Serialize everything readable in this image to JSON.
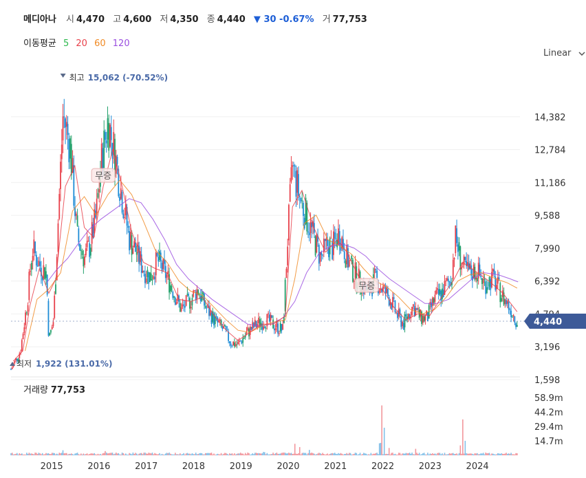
{
  "header": {
    "name": "메디아나",
    "open_label": "시",
    "open": "4,470",
    "high_label": "고",
    "high": "4,600",
    "low_label": "저",
    "low": "4,350",
    "close_label": "종",
    "close": "4,440",
    "change": "▼ 30 -0.67%",
    "volume_label": "거",
    "volume": "77,753"
  },
  "moving_average": {
    "label": "이동평균",
    "periods": [
      {
        "value": "5",
        "color": "#2db84d"
      },
      {
        "value": "20",
        "color": "#e8404a"
      },
      {
        "value": "60",
        "color": "#f08a24"
      },
      {
        "value": "120",
        "color": "#9b4fe0"
      }
    ]
  },
  "scale_selector": {
    "value": "Linear"
  },
  "volume_panel": {
    "label": "거래량",
    "value": "77,753"
  },
  "colors": {
    "up": "#e8404a",
    "down": "#1e8cd6",
    "current_badge": "#3d5a98",
    "neutral": "#22a06b"
  },
  "chart_data": {
    "type": "candlestick",
    "ylim": [
      1598,
      15980
    ],
    "y_ticks": [
      "14,382",
      "12,784",
      "11,186",
      "9,588",
      "7,990",
      "6,392",
      "4,794",
      "3,196",
      "1,598"
    ],
    "y_tick_values": [
      14382,
      12784,
      11186,
      9588,
      7990,
      6392,
      4794,
      3196,
      1598
    ],
    "x_ticks": [
      "2015",
      "2016",
      "2017",
      "2018",
      "2019",
      "2020",
      "2021",
      "2022",
      "2023",
      "2024"
    ],
    "x_tick_years": [
      2015,
      2016,
      2017,
      2018,
      2019,
      2020,
      2021,
      2022,
      2023,
      2024
    ],
    "x_range_years": [
      2014.2,
      2024.96
    ],
    "current_price": {
      "label": "4,440",
      "value": 4440
    },
    "high_marker": {
      "label": "최고",
      "value_text": "15,062 (-70.52%)",
      "value": 15062,
      "year": 2015.3
    },
    "low_marker": {
      "label": "최저",
      "value_text": "1,922 (131.01%)",
      "value": 1922,
      "year": 2014.2
    },
    "annotations": [
      {
        "text": "무증",
        "year": 2016.15,
        "value": 11500
      },
      {
        "text": "무증",
        "year": 2021.72,
        "value": 6150
      }
    ],
    "close_trend": [
      [
        2014.2,
        2100
      ],
      [
        2014.4,
        3000
      ],
      [
        2014.55,
        5500
      ],
      [
        2014.65,
        8000
      ],
      [
        2014.8,
        7200
      ],
      [
        2014.95,
        6800
      ],
      [
        2015.0,
        3500
      ],
      [
        2015.1,
        4500
      ],
      [
        2015.2,
        9500
      ],
      [
        2015.3,
        14500
      ],
      [
        2015.45,
        13000
      ],
      [
        2015.6,
        8500
      ],
      [
        2015.75,
        7500
      ],
      [
        2015.85,
        8000
      ],
      [
        2016.0,
        9500
      ],
      [
        2016.1,
        12000
      ],
      [
        2016.25,
        14200
      ],
      [
        2016.4,
        12500
      ],
      [
        2016.55,
        10500
      ],
      [
        2016.7,
        8500
      ],
      [
        2016.85,
        7800
      ],
      [
        2017.0,
        7000
      ],
      [
        2017.15,
        6600
      ],
      [
        2017.3,
        7400
      ],
      [
        2017.5,
        6600
      ],
      [
        2017.65,
        5800
      ],
      [
        2017.8,
        5000
      ],
      [
        2018.0,
        5500
      ],
      [
        2018.15,
        6000
      ],
      [
        2018.3,
        5200
      ],
      [
        2018.5,
        4500
      ],
      [
        2018.7,
        4000
      ],
      [
        2018.85,
        3400
      ],
      [
        2019.0,
        3300
      ],
      [
        2019.2,
        3900
      ],
      [
        2019.4,
        4300
      ],
      [
        2019.6,
        4500
      ],
      [
        2019.8,
        4200
      ],
      [
        2019.95,
        4000
      ],
      [
        2020.05,
        8500
      ],
      [
        2020.15,
        12000
      ],
      [
        2020.3,
        10500
      ],
      [
        2020.45,
        9500
      ],
      [
        2020.6,
        8500
      ],
      [
        2020.75,
        7500
      ],
      [
        2020.9,
        8200
      ],
      [
        2021.0,
        8000
      ],
      [
        2021.15,
        8800
      ],
      [
        2021.3,
        7500
      ],
      [
        2021.45,
        6800
      ],
      [
        2021.6,
        6300
      ],
      [
        2021.75,
        5800
      ],
      [
        2021.9,
        6500
      ],
      [
        2022.05,
        6000
      ],
      [
        2022.2,
        5600
      ],
      [
        2022.35,
        4800
      ],
      [
        2022.5,
        4300
      ],
      [
        2022.7,
        5200
      ],
      [
        2022.85,
        4600
      ],
      [
        2023.0,
        4600
      ],
      [
        2023.15,
        5500
      ],
      [
        2023.3,
        5800
      ],
      [
        2023.5,
        6500
      ],
      [
        2023.6,
        8500
      ],
      [
        2023.75,
        7000
      ],
      [
        2023.9,
        6800
      ],
      [
        2024.05,
        6900
      ],
      [
        2024.2,
        6300
      ],
      [
        2024.4,
        6500
      ],
      [
        2024.6,
        5600
      ],
      [
        2024.75,
        5100
      ],
      [
        2024.9,
        4440
      ]
    ],
    "ma20": [
      [
        2014.25,
        2500
      ],
      [
        2014.45,
        3000
      ],
      [
        2014.6,
        5200
      ],
      [
        2014.8,
        7000
      ],
      [
        2015.0,
        5800
      ],
      [
        2015.15,
        6500
      ],
      [
        2015.35,
        11000
      ],
      [
        2015.55,
        12000
      ],
      [
        2015.75,
        9000
      ],
      [
        2015.95,
        8500
      ],
      [
        2016.15,
        11000
      ],
      [
        2016.35,
        12800
      ],
      [
        2016.55,
        11000
      ],
      [
        2016.75,
        8800
      ],
      [
        2017.0,
        7300
      ],
      [
        2017.25,
        7000
      ],
      [
        2017.5,
        6800
      ],
      [
        2017.75,
        5500
      ],
      [
        2018.0,
        5400
      ],
      [
        2018.25,
        5600
      ],
      [
        2018.5,
        4700
      ],
      [
        2018.75,
        4000
      ],
      [
        2019.0,
        3500
      ],
      [
        2019.25,
        3900
      ],
      [
        2019.5,
        4300
      ],
      [
        2019.75,
        4300
      ],
      [
        2020.0,
        4700
      ],
      [
        2020.15,
        10000
      ],
      [
        2020.35,
        10800
      ],
      [
        2020.6,
        9000
      ],
      [
        2020.85,
        7800
      ],
      [
        2021.1,
        8400
      ],
      [
        2021.3,
        7800
      ],
      [
        2021.55,
        6600
      ],
      [
        2021.8,
        6100
      ],
      [
        2022.05,
        6000
      ],
      [
        2022.3,
        5100
      ],
      [
        2022.55,
        4500
      ],
      [
        2022.8,
        4800
      ],
      [
        2023.05,
        4700
      ],
      [
        2023.3,
        5600
      ],
      [
        2023.55,
        6400
      ],
      [
        2023.75,
        7300
      ],
      [
        2024.0,
        6900
      ],
      [
        2024.3,
        6400
      ],
      [
        2024.6,
        5800
      ],
      [
        2024.9,
        4900
      ]
    ],
    "ma60": [
      [
        2014.5,
        3000
      ],
      [
        2014.75,
        5500
      ],
      [
        2015.0,
        6000
      ],
      [
        2015.25,
        6800
      ],
      [
        2015.5,
        9800
      ],
      [
        2015.75,
        10500
      ],
      [
        2016.0,
        9600
      ],
      [
        2016.25,
        10600
      ],
      [
        2016.5,
        11300
      ],
      [
        2016.75,
        10600
      ],
      [
        2017.0,
        9300
      ],
      [
        2017.25,
        7900
      ],
      [
        2017.5,
        7300
      ],
      [
        2017.75,
        6400
      ],
      [
        2018.0,
        5900
      ],
      [
        2018.25,
        5700
      ],
      [
        2018.5,
        5100
      ],
      [
        2018.75,
        4500
      ],
      [
        2019.0,
        4000
      ],
      [
        2019.25,
        3900
      ],
      [
        2019.5,
        4200
      ],
      [
        2019.75,
        4400
      ],
      [
        2020.0,
        4500
      ],
      [
        2020.2,
        6500
      ],
      [
        2020.4,
        9200
      ],
      [
        2020.65,
        9600
      ],
      [
        2020.9,
        8400
      ],
      [
        2021.15,
        8100
      ],
      [
        2021.4,
        7700
      ],
      [
        2021.65,
        7000
      ],
      [
        2021.9,
        6400
      ],
      [
        2022.15,
        6100
      ],
      [
        2022.4,
        5600
      ],
      [
        2022.65,
        5000
      ],
      [
        2022.9,
        4800
      ],
      [
        2023.15,
        5000
      ],
      [
        2023.4,
        5600
      ],
      [
        2023.65,
        6400
      ],
      [
        2023.9,
        6700
      ],
      [
        2024.15,
        6800
      ],
      [
        2024.45,
        6500
      ],
      [
        2024.7,
        6300
      ],
      [
        2024.9,
        6050
      ]
    ],
    "ma120": [
      [
        2014.95,
        6300
      ],
      [
        2015.15,
        6900
      ],
      [
        2015.4,
        7500
      ],
      [
        2015.65,
        8300
      ],
      [
        2015.85,
        8900
      ],
      [
        2016.1,
        9400
      ],
      [
        2016.4,
        9900
      ],
      [
        2016.7,
        10400
      ],
      [
        2016.95,
        10200
      ],
      [
        2017.2,
        9400
      ],
      [
        2017.45,
        8400
      ],
      [
        2017.7,
        7200
      ],
      [
        2017.95,
        6500
      ],
      [
        2018.2,
        6000
      ],
      [
        2018.45,
        5500
      ],
      [
        2018.7,
        5100
      ],
      [
        2018.95,
        4700
      ],
      [
        2019.2,
        4300
      ],
      [
        2019.45,
        4200
      ],
      [
        2019.7,
        4300
      ],
      [
        2019.95,
        4600
      ],
      [
        2020.2,
        5400
      ],
      [
        2020.45,
        6800
      ],
      [
        2020.7,
        7700
      ],
      [
        2020.95,
        8100
      ],
      [
        2021.2,
        8200
      ],
      [
        2021.45,
        8000
      ],
      [
        2021.7,
        7600
      ],
      [
        2021.95,
        7000
      ],
      [
        2022.2,
        6500
      ],
      [
        2022.45,
        6100
      ],
      [
        2022.7,
        5700
      ],
      [
        2022.95,
        5300
      ],
      [
        2023.2,
        5300
      ],
      [
        2023.45,
        5500
      ],
      [
        2023.7,
        6000
      ],
      [
        2023.95,
        6500
      ],
      [
        2024.2,
        6800
      ],
      [
        2024.5,
        6700
      ],
      [
        2024.75,
        6500
      ],
      [
        2024.92,
        6350
      ]
    ],
    "ma5_note": "short-term average follows close_trend",
    "volume_ticks": [
      "58.9m",
      "44.2m",
      "29.4m",
      "14.7m"
    ],
    "volume_tick_values": [
      58.9,
      44.2,
      29.4,
      14.7
    ],
    "volume_ylim": [
      0,
      68
    ],
    "volume_spikes": [
      [
        2015.3,
        5.5
      ],
      [
        2016.2,
        4.5
      ],
      [
        2019.4,
        3.0
      ],
      [
        2019.55,
        3.5
      ],
      [
        2020.2,
        14.0
      ],
      [
        2020.3,
        9.0
      ],
      [
        2020.5,
        6.0
      ],
      [
        2022.0,
        14.0
      ],
      [
        2022.05,
        51.0
      ],
      [
        2022.1,
        30.0
      ],
      [
        2022.2,
        10.0
      ],
      [
        2022.75,
        8.0
      ],
      [
        2023.7,
        12.0
      ],
      [
        2023.75,
        38.0
      ],
      [
        2023.8,
        18.0
      ]
    ]
  }
}
